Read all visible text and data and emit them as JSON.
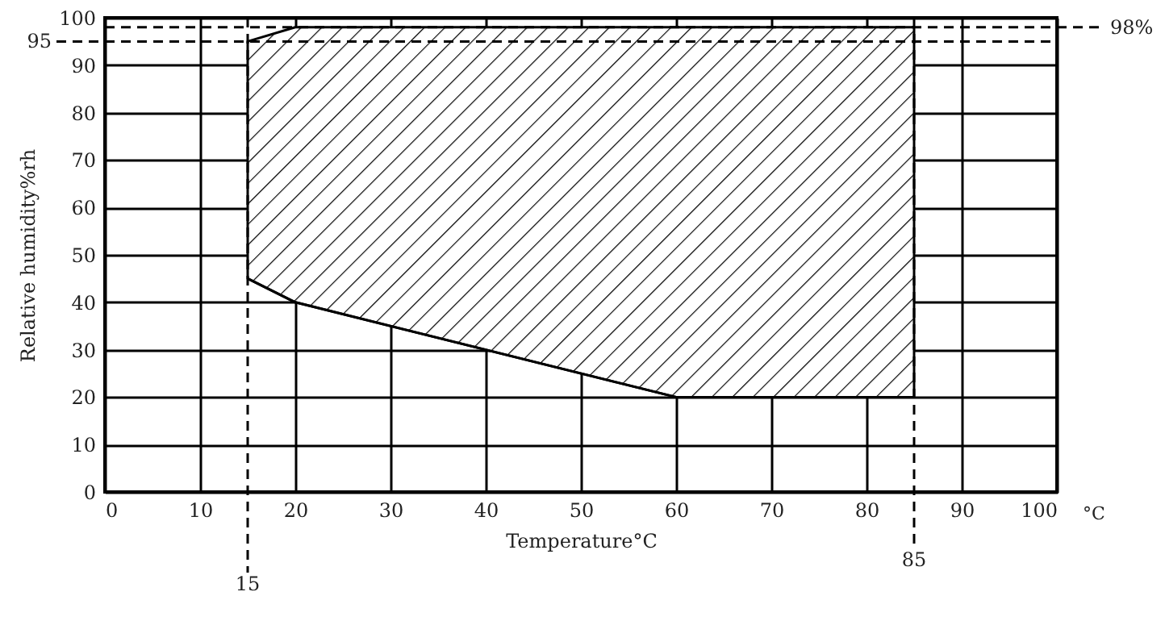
{
  "chart_data": {
    "type": "area",
    "xlabel": "Temperature°C",
    "ylabel": "Relative humidity%rh",
    "xlim": [
      0,
      100
    ],
    "xticks": [
      0,
      10,
      20,
      30,
      40,
      50,
      60,
      70,
      80,
      90,
      100
    ],
    "ylim": [
      0,
      100
    ],
    "yticks": [
      0,
      10,
      20,
      30,
      40,
      50,
      60,
      70,
      80,
      90,
      100
    ],
    "grid": true,
    "series": [
      {
        "color": "#000000",
        "x": [
          15,
          20,
          60,
          85
        ],
        "values": [
          95,
          98,
          98,
          98
        ]
      },
      {
        "type": "line",
        "color": "#000000",
        "x": [
          15,
          20,
          60,
          85
        ],
        "values": [
          45,
          40,
          20,
          20
        ]
      }
    ],
    "ref_lines": [
      {
        "axis": "x",
        "value": 15,
        "label": "15",
        "line_style": "dashed"
      },
      {
        "axis": "x",
        "value": 85,
        "label": "85",
        "line_style": "dashed"
      },
      {
        "axis": "y",
        "value": 95,
        "label": "95",
        "line_style": "dashed"
      },
      {
        "axis": "y",
        "value": 98,
        "label": "98%",
        "line_style": "dashed"
      }
    ],
    "annotations": [
      "°C"
    ]
  }
}
